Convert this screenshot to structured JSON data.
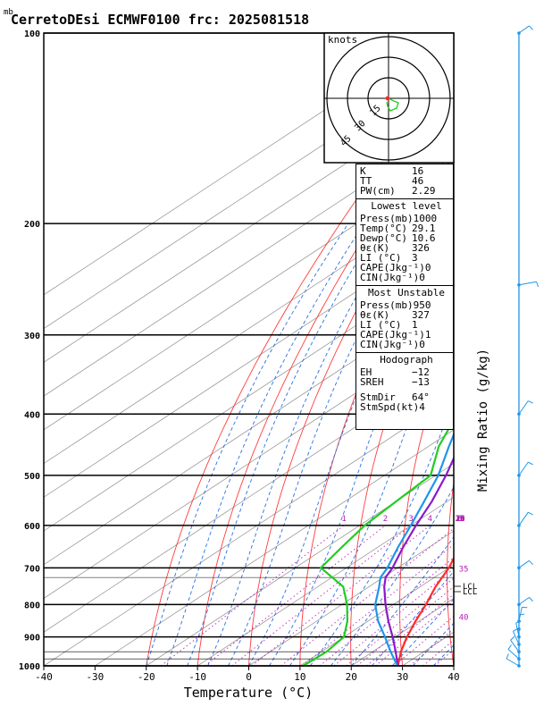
{
  "header": {
    "unit_mark": "mb",
    "title": "CerretoDEsi ECMWF0100 frc: 2025081518"
  },
  "chart_data": {
    "type": "skew-t",
    "xlabel": "Temperature (°C)",
    "ylabel": "Mixing Ratio (g/kg)",
    "xlim": [
      -40,
      40
    ],
    "ylim": [
      1000,
      100
    ],
    "x_ticks": [
      "-40",
      "-30",
      "-20",
      "-10",
      "0",
      "10",
      "20",
      "30",
      "40"
    ],
    "pressure_ticks": [
      "100",
      "200",
      "300",
      "400",
      "500",
      "600",
      "700",
      "800",
      "900",
      "1000"
    ],
    "mixing_ratio_labels": [
      "1",
      "2",
      "3",
      "4",
      "6",
      "8",
      "10",
      "12",
      "14",
      "16",
      "18",
      "20",
      "25",
      "30",
      "35",
      "40"
    ],
    "lcl_labels": [
      "LCL",
      "LCL"
    ],
    "series": [
      {
        "name": "temperature",
        "color": "#ff2a2a",
        "p": [
          1000,
          950,
          900,
          850,
          800,
          750,
          700,
          650,
          600,
          550,
          500,
          450,
          400,
          350,
          300,
          250,
          200,
          150,
          100
        ],
        "t": [
          29.1,
          25.5,
          22.3,
          19.3,
          16.4,
          13.0,
          10.0,
          6.0,
          1.5,
          -3.0,
          -7.5,
          -13.0,
          -19.0,
          -26.0,
          -33.0,
          -42.0,
          -50.0,
          -52.0,
          -54.0
        ]
      },
      {
        "name": "dewpoint",
        "color": "#22cc22",
        "p": [
          1000,
          950,
          900,
          850,
          800,
          750,
          700,
          650,
          600,
          550,
          500,
          450,
          400,
          350,
          300,
          250,
          200,
          150,
          100
        ],
        "t": [
          10.6,
          11.0,
          10.0,
          6.0,
          1.0,
          -5.0,
          -15.0,
          -17.0,
          -19.0,
          -20.0,
          -21.0,
          -28.0,
          -34.0,
          -42.0,
          -52.0,
          -62.0,
          -68.0,
          -76.0,
          -83.0
        ]
      },
      {
        "name": "parcel",
        "color": "#8a1acb",
        "p": [
          1000,
          950,
          900,
          850,
          800,
          750,
          725,
          700,
          650,
          600,
          550,
          500,
          450,
          400,
          350,
          300,
          250,
          200,
          150,
          120
        ],
        "t": [
          29.1,
          24.5,
          19.5,
          14.0,
          8.5,
          3.0,
          0.5,
          -1.0,
          -5.0,
          -9.0,
          -13.0,
          -18.0,
          -24.0,
          -31.0,
          -39.0,
          -49.0,
          -60.0,
          -74.0,
          -92.0,
          -104.0
        ]
      },
      {
        "name": "wet-bulb",
        "color": "#1f96ea",
        "p": [
          1000,
          950,
          900,
          850,
          800,
          750,
          725,
          700,
          650,
          600,
          550,
          500,
          450,
          400,
          350,
          300,
          250,
          200,
          150,
          110
        ],
        "t": [
          29.0,
          23.5,
          18.0,
          12.0,
          6.5,
          2.0,
          -0.5,
          -2.0,
          -6.0,
          -10.0,
          -14.5,
          -19.5,
          -26.0,
          -33.0,
          -41.0,
          -51.0,
          -62.0,
          -77.0,
          -95.0,
          -110.0
        ]
      }
    ]
  },
  "hodograph": {
    "units_label": "knots",
    "ring_labels": [
      "15",
      "30",
      "45"
    ]
  },
  "indices": {
    "k_label": "K",
    "k_value": "16",
    "tt_label": "TT",
    "tt_value": "46",
    "pw_label": "PW(cm)",
    "pw_value": "2.29"
  },
  "lowest_level": {
    "title": "Lowest level",
    "rows": [
      {
        "label": "Press(mb)",
        "value": "1000"
      },
      {
        "label": "Temp(°C)",
        "value": "29.1"
      },
      {
        "label": "Dewp(°C)",
        "value": "10.6"
      },
      {
        "label": "θε(K)",
        "value": "326"
      },
      {
        "label": "LI (°C)",
        "value": "3"
      },
      {
        "label": "CAPE(Jkg⁻¹)",
        "value": "0"
      },
      {
        "label": "CIN(Jkg⁻¹)",
        "value": "0"
      }
    ]
  },
  "most_unstable": {
    "title": "Most Unstable",
    "rows": [
      {
        "label": "Press(mb)",
        "value": "950"
      },
      {
        "label": "θε(K)",
        "value": "327"
      },
      {
        "label": "LI (°C)",
        "value": "1"
      },
      {
        "label": "CAPE(Jkg⁻¹)",
        "value": "1"
      },
      {
        "label": "CIN(Jkg⁻¹)",
        "value": "0"
      }
    ]
  },
  "hodograph_stats": {
    "title": "Hodograph",
    "rows": [
      {
        "label": "EH",
        "value": "−12"
      },
      {
        "label": "SREH",
        "value": "−13"
      },
      {
        "label": "StmDir",
        "value": "64°"
      },
      {
        "label": "StmSpd(kt)",
        "value": "4"
      }
    ]
  }
}
